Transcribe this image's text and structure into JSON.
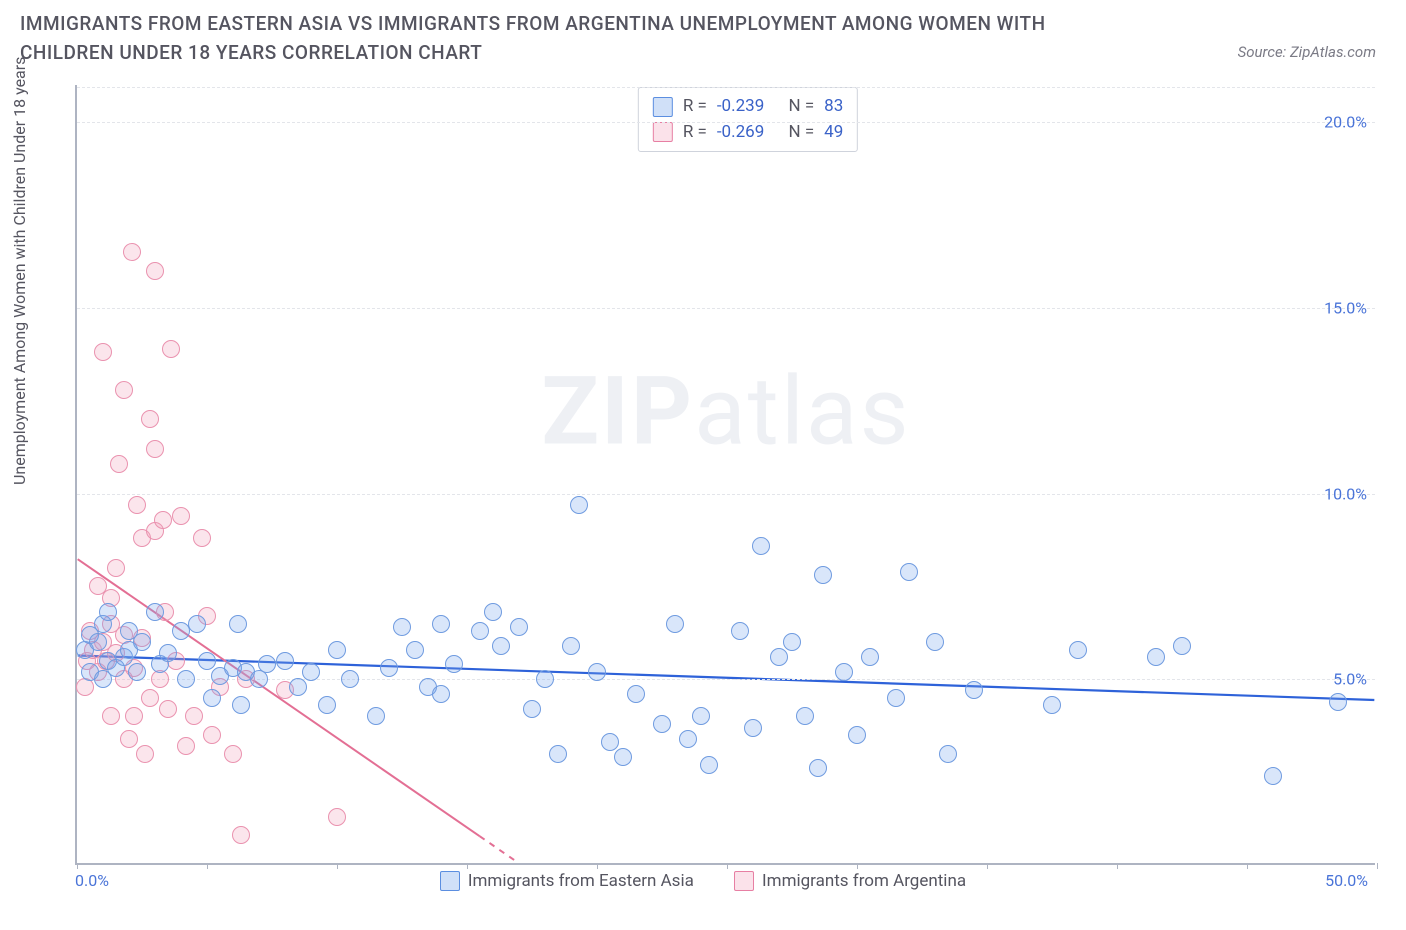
{
  "title": "IMMIGRANTS FROM EASTERN ASIA VS IMMIGRANTS FROM ARGENTINA UNEMPLOYMENT AMONG WOMEN WITH CHILDREN UNDER 18 YEARS CORRELATION CHART",
  "source": "Source: ZipAtlas.com",
  "y_label": "Unemployment Among Women with Children Under 18 years",
  "watermark_a": "ZIP",
  "watermark_b": "atlas",
  "chart": {
    "type": "scatter",
    "background_color": "#ffffff",
    "grid_color": "#e3e5ea",
    "axis_color": "#aeb4c2",
    "xlim": [
      0,
      50
    ],
    "ylim": [
      0,
      21
    ],
    "y_ticks": [
      5,
      10,
      15,
      20
    ],
    "y_tick_labels": [
      "5.0%",
      "10.0%",
      "15.0%",
      "20.0%"
    ],
    "x_tick_marks": [
      0,
      5,
      10,
      15,
      20,
      25,
      30,
      35,
      40,
      45,
      50
    ],
    "x_left_label": "0.0%",
    "x_right_label": "50.0%",
    "legend_box": {
      "rows": [
        {
          "swatch": "blue",
          "r_label": "R =",
          "r": "-0.239",
          "n_label": "N =",
          "n": "83"
        },
        {
          "swatch": "pink",
          "r_label": "R =",
          "r": "-0.269",
          "n_label": "N =",
          "n": "49"
        }
      ]
    },
    "bottom_legend": [
      {
        "swatch": "blue",
        "label": "Immigrants from Eastern Asia"
      },
      {
        "swatch": "pink",
        "label": "Immigrants from Argentina"
      }
    ],
    "series": [
      {
        "name": "Immigrants from Eastern Asia",
        "color_fill": "rgba(120,165,236,0.28)",
        "color_stroke": "#6f9be0",
        "marker_radius": 9,
        "trend": {
          "x1": 0,
          "y1": 5.6,
          "x2": 50,
          "y2": 4.4,
          "color": "#2e62d9",
          "width": 2.2,
          "dash": "none"
        },
        "points": [
          [
            0.3,
            5.8
          ],
          [
            0.5,
            6.2
          ],
          [
            0.5,
            5.2
          ],
          [
            0.8,
            6.0
          ],
          [
            1.0,
            5.0
          ],
          [
            1.0,
            6.5
          ],
          [
            1.2,
            5.5
          ],
          [
            1.2,
            6.8
          ],
          [
            1.5,
            5.3
          ],
          [
            1.8,
            5.6
          ],
          [
            2.0,
            6.3
          ],
          [
            2.0,
            5.8
          ],
          [
            2.3,
            5.2
          ],
          [
            2.5,
            6.0
          ],
          [
            3.0,
            6.8
          ],
          [
            3.2,
            5.4
          ],
          [
            3.5,
            5.7
          ],
          [
            4.0,
            6.3
          ],
          [
            4.2,
            5.0
          ],
          [
            4.6,
            6.5
          ],
          [
            5.0,
            5.5
          ],
          [
            5.2,
            4.5
          ],
          [
            5.5,
            5.1
          ],
          [
            6.0,
            5.3
          ],
          [
            6.2,
            6.5
          ],
          [
            6.3,
            4.3
          ],
          [
            6.5,
            5.2
          ],
          [
            7.0,
            5.0
          ],
          [
            7.3,
            5.4
          ],
          [
            8.0,
            5.5
          ],
          [
            8.5,
            4.8
          ],
          [
            9.0,
            5.2
          ],
          [
            9.6,
            4.3
          ],
          [
            10.0,
            5.8
          ],
          [
            10.5,
            5.0
          ],
          [
            11.5,
            4.0
          ],
          [
            12.0,
            5.3
          ],
          [
            12.5,
            6.4
          ],
          [
            13.0,
            5.8
          ],
          [
            13.5,
            4.8
          ],
          [
            14.0,
            6.5
          ],
          [
            14.0,
            4.6
          ],
          [
            14.5,
            5.4
          ],
          [
            15.5,
            6.3
          ],
          [
            16.0,
            6.8
          ],
          [
            16.3,
            5.9
          ],
          [
            17.0,
            6.4
          ],
          [
            17.5,
            4.2
          ],
          [
            18.0,
            5.0
          ],
          [
            18.5,
            3.0
          ],
          [
            19.0,
            5.9
          ],
          [
            19.3,
            9.7
          ],
          [
            20.0,
            5.2
          ],
          [
            20.5,
            3.3
          ],
          [
            21.0,
            2.9
          ],
          [
            21.5,
            4.6
          ],
          [
            22.5,
            3.8
          ],
          [
            23.0,
            6.5
          ],
          [
            23.5,
            3.4
          ],
          [
            24.0,
            4.0
          ],
          [
            24.3,
            2.7
          ],
          [
            25.5,
            6.3
          ],
          [
            26.0,
            3.7
          ],
          [
            26.3,
            8.6
          ],
          [
            27.0,
            5.6
          ],
          [
            27.5,
            6.0
          ],
          [
            28.0,
            4.0
          ],
          [
            28.5,
            2.6
          ],
          [
            28.7,
            7.8
          ],
          [
            29.5,
            5.2
          ],
          [
            30.0,
            3.5
          ],
          [
            30.5,
            5.6
          ],
          [
            31.5,
            4.5
          ],
          [
            32.0,
            7.9
          ],
          [
            33.0,
            6.0
          ],
          [
            33.5,
            3.0
          ],
          [
            34.5,
            4.7
          ],
          [
            37.5,
            4.3
          ],
          [
            38.5,
            5.8
          ],
          [
            41.5,
            5.6
          ],
          [
            42.5,
            5.9
          ],
          [
            46.0,
            2.4
          ],
          [
            48.5,
            4.4
          ]
        ]
      },
      {
        "name": "Immigrants from Argentina",
        "color_fill": "rgba(241,160,185,0.28)",
        "color_stroke": "#ea92af",
        "marker_radius": 9,
        "trend": {
          "x1": 0,
          "y1": 8.2,
          "x2": 17,
          "y2": 0,
          "color": "#e36f94",
          "width": 2,
          "dash_split": 15.5
        },
        "points": [
          [
            0.3,
            4.8
          ],
          [
            0.4,
            5.5
          ],
          [
            0.5,
            6.3
          ],
          [
            0.6,
            5.8
          ],
          [
            0.8,
            5.2
          ],
          [
            0.8,
            7.5
          ],
          [
            1.0,
            6.0
          ],
          [
            1.0,
            13.8
          ],
          [
            1.1,
            5.5
          ],
          [
            1.3,
            6.5
          ],
          [
            1.3,
            7.2
          ],
          [
            1.3,
            4.0
          ],
          [
            1.5,
            5.7
          ],
          [
            1.5,
            8.0
          ],
          [
            1.6,
            10.8
          ],
          [
            1.8,
            5.0
          ],
          [
            1.8,
            6.2
          ],
          [
            1.8,
            12.8
          ],
          [
            2.0,
            3.4
          ],
          [
            2.1,
            16.5
          ],
          [
            2.2,
            4.0
          ],
          [
            2.2,
            5.3
          ],
          [
            2.3,
            9.7
          ],
          [
            2.5,
            8.8
          ],
          [
            2.5,
            6.1
          ],
          [
            2.6,
            3.0
          ],
          [
            2.8,
            12.0
          ],
          [
            2.8,
            4.5
          ],
          [
            3.0,
            16.0
          ],
          [
            3.0,
            9.0
          ],
          [
            3.0,
            11.2
          ],
          [
            3.2,
            5.0
          ],
          [
            3.3,
            9.3
          ],
          [
            3.4,
            6.8
          ],
          [
            3.5,
            4.2
          ],
          [
            3.6,
            13.9
          ],
          [
            3.8,
            5.5
          ],
          [
            4.0,
            9.4
          ],
          [
            4.2,
            3.2
          ],
          [
            4.5,
            4.0
          ],
          [
            4.8,
            8.8
          ],
          [
            5.0,
            6.7
          ],
          [
            5.2,
            3.5
          ],
          [
            5.5,
            4.8
          ],
          [
            6.0,
            3.0
          ],
          [
            6.3,
            0.8
          ],
          [
            6.5,
            5.0
          ],
          [
            8.0,
            4.7
          ],
          [
            10.0,
            1.3
          ]
        ]
      }
    ]
  }
}
